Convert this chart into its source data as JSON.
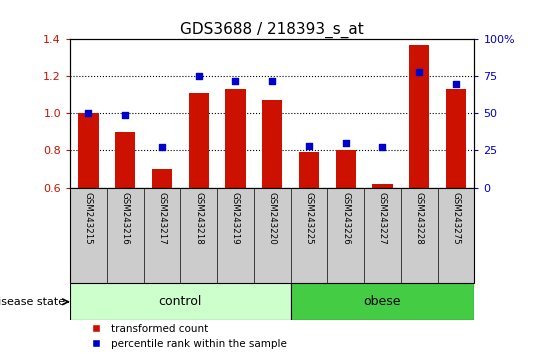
{
  "title": "GDS3688 / 218393_s_at",
  "categories": [
    "GSM243215",
    "GSM243216",
    "GSM243217",
    "GSM243218",
    "GSM243219",
    "GSM243220",
    "GSM243225",
    "GSM243226",
    "GSM243227",
    "GSM243228",
    "GSM243275"
  ],
  "bar_values": [
    1.0,
    0.9,
    0.7,
    1.11,
    1.13,
    1.07,
    0.79,
    0.8,
    0.62,
    1.37,
    1.13
  ],
  "dot_values_right": [
    50,
    49,
    27,
    75,
    72,
    72,
    28,
    30,
    27,
    78,
    70
  ],
  "ylim_left": [
    0.6,
    1.4
  ],
  "ylim_right": [
    0,
    100
  ],
  "yticks_left": [
    0.6,
    0.8,
    1.0,
    1.2,
    1.4
  ],
  "yticks_right": [
    0,
    25,
    50,
    75,
    100
  ],
  "bar_color": "#cc1100",
  "dot_color": "#0000cc",
  "bar_baseline": 0.6,
  "n_control": 6,
  "n_obese": 5,
  "control_label": "control",
  "obese_label": "obese",
  "disease_label": "disease state",
  "legend_bar": "transformed count",
  "legend_dot": "percentile rank within the sample",
  "control_color": "#ccffcc",
  "obese_color": "#44cc44",
  "tick_area_color": "#cccccc",
  "title_fontsize": 11,
  "axis_label_color_left": "#cc1100",
  "axis_label_color_right": "#0000cc"
}
